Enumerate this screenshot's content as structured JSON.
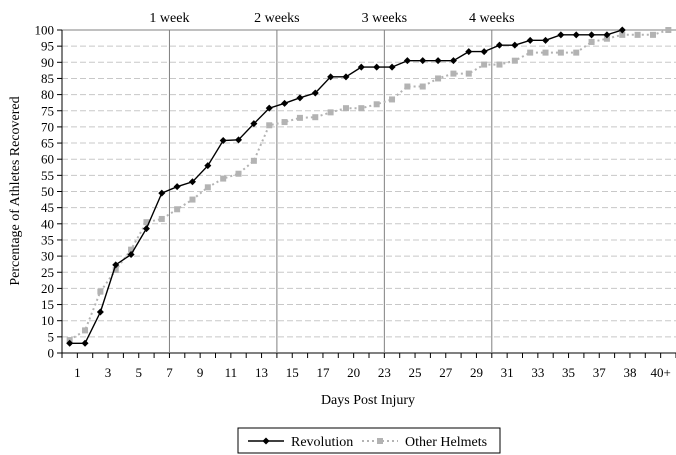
{
  "chart_data": {
    "type": "line",
    "title": "",
    "xlabel": "Days Post Injury",
    "ylabel": "Percentage of Athletes Recovered",
    "ylim": [
      0,
      100
    ],
    "yticks": [
      0,
      5,
      10,
      15,
      20,
      25,
      30,
      35,
      40,
      45,
      50,
      55,
      60,
      65,
      70,
      75,
      80,
      85,
      90,
      95,
      100
    ],
    "categories": [
      "1",
      "2",
      "3",
      "4",
      "5",
      "6",
      "7",
      "8",
      "9",
      "10",
      "11",
      "12",
      "13",
      "14",
      "15",
      "16",
      "17",
      "18",
      "19",
      "20",
      "21",
      "22",
      "23",
      "24",
      "25",
      "26",
      "27",
      "28",
      "29",
      "30",
      "31",
      "32",
      "33",
      "34",
      "35",
      "36",
      "37",
      "38",
      "39",
      "40+"
    ],
    "xtick_labels": [
      "1",
      "3",
      "5",
      "7",
      "9",
      "11",
      "13",
      "15",
      "17",
      "20",
      "23",
      "25",
      "27",
      "29",
      "31",
      "33",
      "35",
      "37",
      "38",
      "40+"
    ],
    "annotations": [
      "1 week",
      "2 weeks",
      "3 weeks",
      "4 weeks"
    ],
    "grid": true,
    "legend_position": "bottom",
    "series": [
      {
        "name": "Revolution",
        "color": "#000000",
        "marker": "diamond",
        "values": [
          3,
          3,
          12.7,
          27.3,
          30.5,
          38.5,
          49.5,
          51.5,
          53,
          58,
          65.8,
          66,
          71,
          75.8,
          77.3,
          79,
          80.5,
          85.5,
          85.5,
          88.5,
          88.5,
          88.5,
          90.5,
          90.5,
          90.5,
          90.5,
          93.3,
          93.3,
          95.3,
          95.3,
          96.8,
          96.8,
          98.5,
          98.5,
          98.5,
          98.5,
          100,
          null,
          null,
          null
        ]
      },
      {
        "name": "Other Helmets",
        "color": "#b3b3b3",
        "marker": "square",
        "values": [
          4,
          7,
          19,
          25.7,
          32,
          40.5,
          41.5,
          44.5,
          47.5,
          51.3,
          54,
          55.5,
          59.5,
          70.5,
          71.5,
          72.8,
          73,
          74.5,
          75.8,
          75.8,
          77,
          78.5,
          82.5,
          82.5,
          85,
          86.5,
          86.5,
          89.3,
          89.3,
          90.5,
          93,
          93,
          93,
          93,
          96.3,
          97.3,
          98.5,
          98.5,
          98.5,
          100
        ]
      }
    ]
  }
}
